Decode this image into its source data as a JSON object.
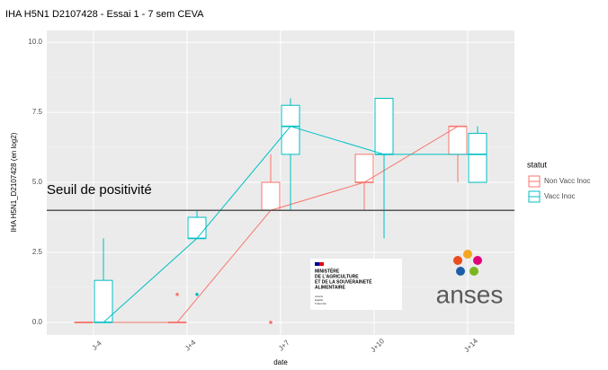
{
  "chart_data": {
    "type": "boxplot",
    "title": "IHA H5N1 D2107428 - Essai 1 - 7 sem CEVA",
    "x_label": "date",
    "y_label": "IHA H5N1_D2107428 (en log2)",
    "categories": [
      "J-4",
      "J+4",
      "J+7",
      "J+10",
      "J+14"
    ],
    "legend_title": "statut",
    "series": [
      {
        "name": "Non Vacc Inoc",
        "color": "#F8766D",
        "low": [
          0,
          0,
          4,
          4,
          5
        ],
        "q1": [
          0,
          0,
          4,
          5,
          6
        ],
        "median": [
          0,
          0,
          4,
          5,
          7
        ],
        "q3": [
          0,
          0,
          5,
          6,
          7
        ],
        "high": [
          0,
          0,
          6,
          6,
          7
        ],
        "outliers": [
          [],
          [
            1
          ],
          [
            0
          ],
          [],
          []
        ]
      },
      {
        "name": "Vacc Inoc",
        "color": "#00BFC4",
        "low": [
          0,
          3,
          4,
          3,
          5
        ],
        "q1": [
          0,
          3,
          6,
          6,
          5
        ],
        "median": [
          0,
          3,
          7,
          6,
          6
        ],
        "q3": [
          1.5,
          3.75,
          7.75,
          8,
          6.75
        ],
        "high": [
          3,
          4,
          8,
          8,
          7
        ],
        "outliers": [
          [],
          [
            1
          ],
          [],
          [],
          []
        ]
      }
    ],
    "threshold": {
      "value": 4,
      "label": "Seuil de positivité"
    },
    "ylim": [
      -0.45,
      10.42
    ],
    "yticks": [
      {
        "value": 0,
        "label": "0.0"
      },
      2.5,
      {
        "value": 5,
        "label": "5.0"
      },
      7.5,
      {
        "value": 10,
        "label": "10.0"
      }
    ],
    "grid": true,
    "logos": {
      "ministry": [
        "MINISTÈRE",
        "DE L'AGRICULTURE",
        "ET DE LA SOUVERAINETÉ",
        "ALIMENTAIRE"
      ],
      "ministry_motto": [
        "Liberté",
        "Égalité",
        "Fraternité"
      ],
      "agency": "anses"
    }
  }
}
